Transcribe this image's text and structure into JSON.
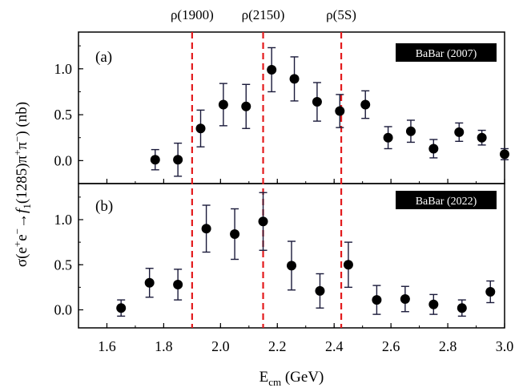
{
  "chart_data": [
    {
      "panel": "(a)",
      "type": "scatter",
      "legend": "BaBar (2007)",
      "legend_placement": "top-right",
      "xlim": [
        1.5,
        3.0
      ],
      "ylim": [
        -0.25,
        1.4
      ],
      "yticks": [
        0.0,
        0.5,
        1.0
      ],
      "points": [
        {
          "x": 1.77,
          "y": 0.01,
          "err": 0.11
        },
        {
          "x": 1.85,
          "y": 0.01,
          "err": 0.18
        },
        {
          "x": 1.93,
          "y": 0.35,
          "err": 0.2
        },
        {
          "x": 2.01,
          "y": 0.61,
          "err": 0.23
        },
        {
          "x": 2.09,
          "y": 0.59,
          "err": 0.24
        },
        {
          "x": 2.18,
          "y": 0.99,
          "err": 0.24
        },
        {
          "x": 2.26,
          "y": 0.89,
          "err": 0.24
        },
        {
          "x": 2.34,
          "y": 0.64,
          "err": 0.21
        },
        {
          "x": 2.42,
          "y": 0.54,
          "err": 0.18
        },
        {
          "x": 2.51,
          "y": 0.61,
          "err": 0.15
        },
        {
          "x": 2.59,
          "y": 0.25,
          "err": 0.12
        },
        {
          "x": 2.67,
          "y": 0.32,
          "err": 0.12
        },
        {
          "x": 2.75,
          "y": 0.13,
          "err": 0.1
        },
        {
          "x": 2.84,
          "y": 0.31,
          "err": 0.1
        },
        {
          "x": 2.92,
          "y": 0.25,
          "err": 0.08
        },
        {
          "x": 3.0,
          "y": 0.07,
          "err": 0.06
        }
      ]
    },
    {
      "panel": "(b)",
      "type": "scatter",
      "legend": "BaBar (2022)",
      "legend_placement": "top-right",
      "xlim": [
        1.5,
        3.0
      ],
      "ylim": [
        -0.2,
        1.4
      ],
      "yticks": [
        0.0,
        0.5,
        1.0
      ],
      "points": [
        {
          "x": 1.65,
          "y": 0.02,
          "err": 0.09
        },
        {
          "x": 1.75,
          "y": 0.3,
          "err": 0.16
        },
        {
          "x": 1.85,
          "y": 0.28,
          "err": 0.17
        },
        {
          "x": 1.95,
          "y": 0.9,
          "err": 0.26
        },
        {
          "x": 2.05,
          "y": 0.84,
          "err": 0.28
        },
        {
          "x": 2.15,
          "y": 0.98,
          "err": 0.32
        },
        {
          "x": 2.25,
          "y": 0.49,
          "err": 0.27
        },
        {
          "x": 2.35,
          "y": 0.21,
          "err": 0.19
        },
        {
          "x": 2.45,
          "y": 0.5,
          "err": 0.25
        },
        {
          "x": 2.55,
          "y": 0.11,
          "err": 0.16
        },
        {
          "x": 2.65,
          "y": 0.12,
          "err": 0.14
        },
        {
          "x": 2.75,
          "y": 0.06,
          "err": 0.11
        },
        {
          "x": 2.85,
          "y": 0.02,
          "err": 0.09
        },
        {
          "x": 2.95,
          "y": 0.2,
          "err": 0.12
        }
      ]
    }
  ],
  "xticks": [
    1.6,
    1.8,
    2.0,
    2.2,
    2.4,
    2.6,
    2.8,
    3.0
  ],
  "xlabel_main": "E",
  "xlabel_sub": "cm",
  "xlabel_unit": " (GeV)",
  "ylabel": {
    "pre": "σ(e",
    "sup1": "+",
    "mid1": "e",
    "sup2": "−",
    "mid2": "→",
    "f": "f",
    "sub": "1",
    "mid3": "(1285)π",
    "sup3": "+",
    "mid4": "π",
    "sup4": "−",
    "post": ") (nb)"
  },
  "resonances": [
    {
      "label": "ρ(1900)",
      "x": 1.9
    },
    {
      "label": "ρ(2150)",
      "x": 2.15
    },
    {
      "label": "ρ(5S)",
      "x": 2.425
    }
  ],
  "colors": {
    "resonance_line": "#e31a1c",
    "marker": "#000000",
    "errorbar": "#1a1a3a",
    "badge_bg": "#000000"
  }
}
